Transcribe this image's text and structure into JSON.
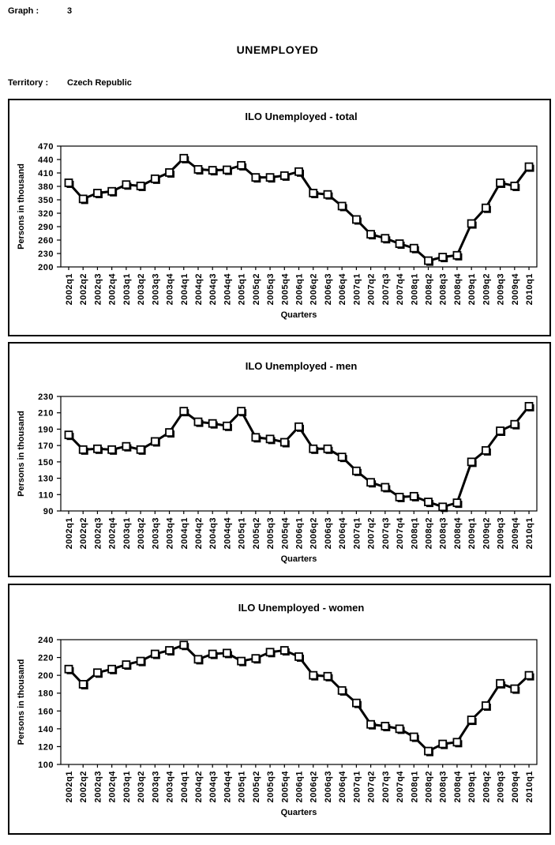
{
  "header": {
    "graph_label": "Graph :",
    "graph_number": "3",
    "title": "UNEMPLOYED",
    "territory_label": "Territory :",
    "territory_value": "Czech Republic"
  },
  "chart_data": [
    {
      "type": "line",
      "title": "ILO Unemployed - total",
      "xlabel": "Quarters",
      "ylabel": "Persons in thousand",
      "ylim": [
        200,
        470
      ],
      "ytick_step": 30,
      "grid": false,
      "legend": "none",
      "marker": "white-square",
      "line_color": "#000000",
      "categories": [
        "2002q1",
        "2002q2",
        "2002q3",
        "2002q4",
        "2003q1",
        "2003q2",
        "2003q3",
        "2003q4",
        "2004q1",
        "2004q2",
        "2004q3",
        "2004q4",
        "2005q1",
        "2005q2",
        "2005q3",
        "2005q4",
        "2006q1",
        "2006q2",
        "2006q3",
        "2006q4",
        "2007q1",
        "2007q2",
        "2007q3",
        "2007q4",
        "2008q1",
        "2008q2",
        "2008q3",
        "2008q4",
        "2009q1",
        "2009q2",
        "2009q3",
        "2009q4",
        "2010q1"
      ],
      "values": [
        388,
        352,
        365,
        369,
        384,
        381,
        397,
        411,
        443,
        418,
        416,
        417,
        427,
        400,
        400,
        404,
        413,
        365,
        362,
        336,
        306,
        273,
        264,
        252,
        242,
        214,
        222,
        226,
        297,
        332,
        388,
        381,
        424
      ]
    },
    {
      "type": "line",
      "title": "ILO Unemployed - men",
      "xlabel": "Quarters",
      "ylabel": "Persons in thousand",
      "ylim": [
        90,
        230
      ],
      "ytick_step": 20,
      "grid": false,
      "legend": "none",
      "marker": "white-square",
      "line_color": "#000000",
      "categories": [
        "2002q1",
        "2002q2",
        "2002q3",
        "2002q4",
        "2003q1",
        "2003q2",
        "2003q3",
        "2003q4",
        "2004q1",
        "2004q2",
        "2004q3",
        "2004q4",
        "2005q1",
        "2005q2",
        "2005q3",
        "2005q4",
        "2006q1",
        "2006q2",
        "2006q3",
        "2006q4",
        "2007q1",
        "2007q2",
        "2007q3",
        "2007q4",
        "2008q1",
        "2008q2",
        "2008q3",
        "2008q4",
        "2009q1",
        "2009q2",
        "2009q3",
        "2009q4",
        "2010q1"
      ],
      "values": [
        183,
        165,
        166,
        165,
        169,
        165,
        175,
        186,
        212,
        199,
        197,
        194,
        212,
        180,
        178,
        174,
        193,
        166,
        166,
        156,
        139,
        125,
        119,
        107,
        108,
        101,
        95,
        100,
        150,
        164,
        188,
        196,
        218
      ]
    },
    {
      "type": "line",
      "title": "ILO Unemployed - women",
      "xlabel": "Quarters",
      "ylabel": "Persons in thousand",
      "ylim": [
        100,
        240
      ],
      "ytick_step": 20,
      "grid": false,
      "legend": "none",
      "marker": "white-square",
      "line_color": "#000000",
      "categories": [
        "2002q1",
        "2002q2",
        "2002q3",
        "2002q4",
        "2003q1",
        "2003q2",
        "2003q3",
        "2003q4",
        "2004q1",
        "2004q2",
        "2004q3",
        "2004q4",
        "2005q1",
        "2005q2",
        "2005q3",
        "2005q4",
        "2006q1",
        "2006q2",
        "2006q3",
        "2006q4",
        "2007q1",
        "2007q2",
        "2007q3",
        "2007q4",
        "2008q1",
        "2008q2",
        "2008q3",
        "2008q4",
        "2009q1",
        "2009q2",
        "2009q3",
        "2009q4",
        "2010q1"
      ],
      "values": [
        207,
        190,
        203,
        207,
        212,
        216,
        224,
        228,
        234,
        218,
        224,
        225,
        216,
        219,
        226,
        228,
        221,
        200,
        199,
        183,
        169,
        145,
        143,
        140,
        131,
        115,
        123,
        125,
        150,
        166,
        191,
        185,
        200
      ]
    }
  ]
}
